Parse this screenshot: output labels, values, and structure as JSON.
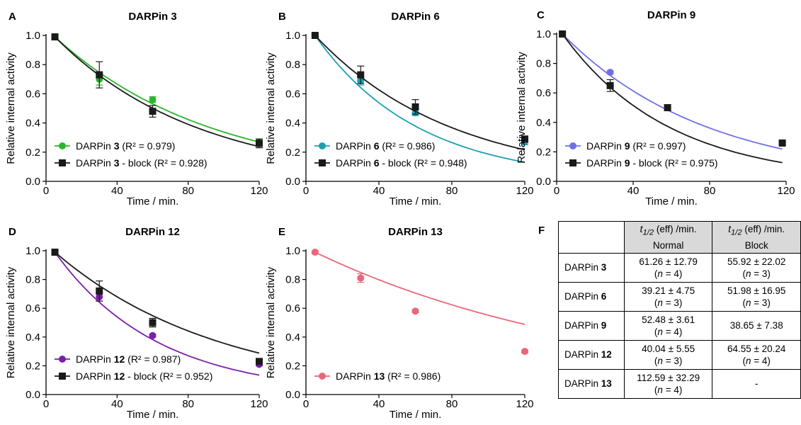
{
  "colors": {
    "black": "#1a1a1a",
    "green": "#2cb52c",
    "teal": "#1a9fb3",
    "blue": "#6f6fe6",
    "purple": "#7b1fa8",
    "pink": "#e9677a"
  },
  "chart_data": [
    {
      "type": "scatter",
      "panel": "A",
      "title": "DARPin 3",
      "xlabel": "Time / min.",
      "ylabel": "Relative internal activity",
      "xlim": [
        0,
        120
      ],
      "ylim": [
        0,
        1.0
      ],
      "xticks": [
        "0",
        "40",
        "80",
        "120"
      ],
      "yticks": [
        "0.0",
        "0.2",
        "0.4",
        "0.6",
        "0.8",
        "1.0"
      ],
      "legend_position": "bottom-left",
      "series": [
        {
          "name_prefix": "DARPin ",
          "name_bold": "3",
          "name_suffix": " (R² = 0.979)",
          "color_key": "green",
          "marker": "circle",
          "x": [
            5,
            30,
            60,
            120
          ],
          "y": [
            0.99,
            0.7,
            0.56,
            0.27
          ],
          "err": [
            0.01,
            0.04,
            0.02,
            0.02
          ],
          "t_half": 61.26
        },
        {
          "name_prefix": "DARPin ",
          "name_bold": "3",
          "name_suffix": " - block (R² = 0.928)",
          "color_key": "black",
          "marker": "square",
          "x": [
            5,
            30,
            60,
            120
          ],
          "y": [
            0.99,
            0.73,
            0.48,
            0.26
          ],
          "err": [
            0.01,
            0.09,
            0.04,
            0.03
          ],
          "t_half": 55.92
        }
      ]
    },
    {
      "type": "scatter",
      "panel": "B",
      "title": "DARPin 6",
      "xlabel": "Time / min.",
      "ylabel": "Relative internal activity",
      "xlim": [
        0,
        120
      ],
      "ylim": [
        0,
        1.0
      ],
      "xticks": [
        "0",
        "40",
        "80",
        "120"
      ],
      "yticks": [
        "0.0",
        "0.2",
        "0.4",
        "0.6",
        "0.8",
        "1.0"
      ],
      "legend_position": "bottom-left",
      "series": [
        {
          "name_prefix": "DARPin ",
          "name_bold": "6",
          "name_suffix": " (R² = 0.986)",
          "color_key": "teal",
          "marker": "circle",
          "x": [
            5,
            30,
            60,
            120
          ],
          "y": [
            1.0,
            0.69,
            0.47,
            0.27
          ],
          "err": [
            0.01,
            0.03,
            0.02,
            0.02
          ],
          "t_half": 39.21
        },
        {
          "name_prefix": "DARPin ",
          "name_bold": "6",
          "name_suffix": " - block (R² = 0.948)",
          "color_key": "black",
          "marker": "square",
          "x": [
            5,
            30,
            60,
            120
          ],
          "y": [
            1.0,
            0.73,
            0.51,
            0.29
          ],
          "err": [
            0.01,
            0.06,
            0.05,
            0.02
          ],
          "t_half": 51.98
        }
      ]
    },
    {
      "type": "scatter",
      "panel": "C",
      "title": "DARPin 9",
      "xlabel": "Time / min.",
      "ylabel": "Relative internal activity",
      "xlim": [
        0,
        120
      ],
      "ylim": [
        0,
        1.0
      ],
      "xticks": [
        "0",
        "40",
        "80",
        "120"
      ],
      "yticks": [
        "0.0",
        "0.2",
        "0.4",
        "0.6",
        "0.8",
        "1.0"
      ],
      "legend_position": "bottom-left",
      "series": [
        {
          "name_prefix": "DARPin ",
          "name_bold": "9",
          "name_suffix": " (R² = 0.997)",
          "color_key": "blue",
          "marker": "circle",
          "x": [
            3,
            28,
            58,
            118
          ],
          "y": [
            1.0,
            0.74,
            0.5,
            0.26
          ],
          "err": [
            0.01,
            0.01,
            0.02,
            0.01
          ],
          "t_half": 52.48
        },
        {
          "name_prefix": "DARPin ",
          "name_bold": "9",
          "name_suffix": " - block (R² = 0.975)",
          "color_key": "black",
          "marker": "square",
          "x": [
            3,
            28,
            58,
            118
          ],
          "y": [
            1.0,
            0.65,
            0.5,
            0.26
          ],
          "err": [
            0.01,
            0.04,
            0.02,
            0.01
          ],
          "t_half": 38.65
        }
      ]
    },
    {
      "type": "scatter",
      "panel": "D",
      "title": "DARPin 12",
      "xlabel": "Time / min.",
      "ylabel": "Relative internal activity",
      "xlim": [
        0,
        120
      ],
      "ylim": [
        0,
        1.0
      ],
      "xticks": [
        "0",
        "40",
        "80",
        "120"
      ],
      "yticks": [
        "0.0",
        "0.2",
        "0.4",
        "0.6",
        "0.8",
        "1.0"
      ],
      "legend_position": "bottom-left",
      "series": [
        {
          "name_prefix": "DARPin ",
          "name_bold": "12",
          "name_suffix": " (R² = 0.987)",
          "color_key": "purple",
          "marker": "circle",
          "x": [
            5,
            30,
            60,
            120
          ],
          "y": [
            0.99,
            0.68,
            0.41,
            0.21
          ],
          "err": [
            0.01,
            0.03,
            0.01,
            0.01
          ],
          "t_half": 40.04
        },
        {
          "name_prefix": "DARPin ",
          "name_bold": "12",
          "name_suffix": " - block (R² = 0.952)",
          "color_key": "black",
          "marker": "square",
          "x": [
            5,
            30,
            60,
            120
          ],
          "y": [
            0.99,
            0.72,
            0.5,
            0.23
          ],
          "err": [
            0.01,
            0.07,
            0.03,
            0.01
          ],
          "t_half": 64.55
        }
      ]
    },
    {
      "type": "scatter",
      "panel": "E",
      "title": "DARPin 13",
      "xlabel": "Time / min.",
      "ylabel": "Relative internal activity",
      "xlim": [
        0,
        120
      ],
      "ylim": [
        0,
        1.0
      ],
      "xticks": [
        "0",
        "40",
        "80",
        "120"
      ],
      "yticks": [
        "0.0",
        "0.2",
        "0.4",
        "0.6",
        "0.8",
        "1.0"
      ],
      "legend_position": "bottom-left",
      "series": [
        {
          "name_prefix": "DARPin ",
          "name_bold": "13",
          "name_suffix": " (R² = 0.986)",
          "color_key": "pink",
          "marker": "circle",
          "x": [
            5,
            30,
            60,
            120
          ],
          "y": [
            0.99,
            0.81,
            0.58,
            0.3
          ],
          "err": [
            0.01,
            0.03,
            0.01,
            0.01
          ],
          "t_half": 112.59
        }
      ]
    }
  ],
  "table": {
    "panel": "F",
    "headers": [
      {
        "t": "t",
        "sub": "1/2",
        "rest": " (eff) /min.",
        "line2": "Normal"
      },
      {
        "t": "t",
        "sub": "1/2",
        "rest": " (eff) /min.",
        "line2": "Block"
      }
    ],
    "rows": [
      {
        "label": "DARPin ",
        "label_bold": "3",
        "normal": "61.26 ± 12.79",
        "normal_n": "(n = 4)",
        "block": "55.92 ± 22.02",
        "block_n": "(n = 3)"
      },
      {
        "label": "DARPin ",
        "label_bold": "6",
        "normal": "39.21 ± 4.75",
        "normal_n": "(n = 3)",
        "block": "51.98 ± 16.95",
        "block_n": "(n = 3)"
      },
      {
        "label": "DARPin ",
        "label_bold": "9",
        "normal": "52.48 ± 3.61",
        "normal_n": "(n = 4)",
        "block": "38.65 ± 7.38",
        "block_n": ""
      },
      {
        "label": "DARPin ",
        "label_bold": "12",
        "normal": "40.04 ± 5.55",
        "normal_n": "(n = 3)",
        "block": "64.55 ± 20.24",
        "block_n": "(n = 4)"
      },
      {
        "label": "DARPin ",
        "label_bold": "13",
        "normal": "112.59 ± 32.29",
        "normal_n": "(n = 4)",
        "block": "-",
        "block_n": ""
      }
    ]
  }
}
